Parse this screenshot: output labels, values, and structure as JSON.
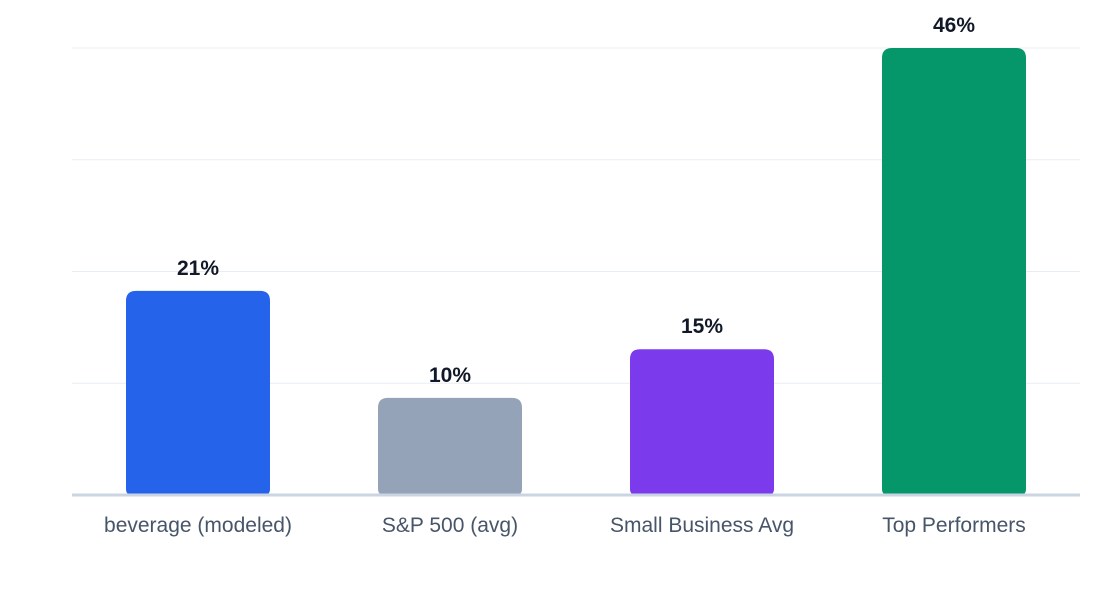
{
  "chart_data": {
    "type": "bar",
    "title": "",
    "xlabel": "",
    "ylabel": "",
    "categories": [
      "beverage (modeled)",
      "S&P 500 (avg)",
      "Small Business Avg",
      "Top Performers"
    ],
    "values": [
      21,
      10,
      15,
      46
    ],
    "value_labels": [
      "21%",
      "10%",
      "15%",
      "46%"
    ],
    "colors": [
      "#2563eb",
      "#94a3b8",
      "#7c3aed",
      "#059669"
    ],
    "ylim": [
      0,
      46
    ],
    "grid": true,
    "legend": "none"
  }
}
